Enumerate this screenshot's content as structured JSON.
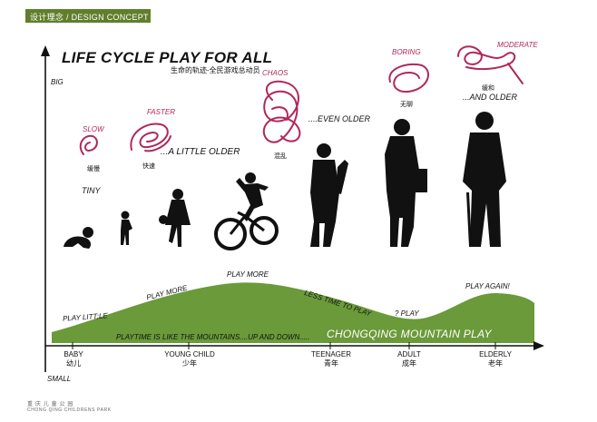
{
  "header": {
    "label": "设计理念 / DESIGN CONCEPT"
  },
  "title": "LIFE CYCLE PLAY FOR ALL",
  "subtitle": "生命的轨迹-全民游戏总动员",
  "axis": {
    "big": "BIG",
    "small": "SMALL"
  },
  "stages": [
    {
      "en": "BABY",
      "cn": "幼儿"
    },
    {
      "en": "YOUNG CHILD",
      "cn": "少年"
    },
    {
      "en": "TEENAGER",
      "cn": "青年"
    },
    {
      "en": "ADULT",
      "cn": "成年"
    },
    {
      "en": "ELDERLY",
      "cn": "老年"
    }
  ],
  "figure_labels": {
    "tiny": "TINY",
    "little_older": "...A LITTLE OLDER",
    "even_older": "....EVEN OLDER",
    "and_older": "...AND OLDER"
  },
  "scribbles": [
    {
      "en": "SLOW",
      "cn": "缓慢"
    },
    {
      "en": "FASTER",
      "cn": "快速"
    },
    {
      "en": "CHAOS",
      "cn": "混乱"
    },
    {
      "en": "BORING",
      "cn": "无聊"
    },
    {
      "en": "MODERATE",
      "cn": "缓和"
    }
  ],
  "curve_labels": {
    "play_little": "PLAY LITT;LE",
    "play_more_1": "PLAY MORE",
    "play_more_2": "PLAY MORE",
    "less_time": "LESS TIME TO PLAY",
    "q_play": "? PLAY",
    "play_again": "PLAY AGAIN!"
  },
  "band_text": "PLAYTIME  IS LIKE THE MOUNTAINS....UP AND DOWN.....",
  "band_title": "CHONGQING MOUNTAIN PLAY",
  "footer": {
    "cn": "重 庆 儿 童 公 园",
    "en": "CHONG QING CHILDRENS PARK"
  },
  "colors": {
    "green": "#6b9a3a",
    "header": "#5f7f2b",
    "accent": "#b0285a"
  }
}
